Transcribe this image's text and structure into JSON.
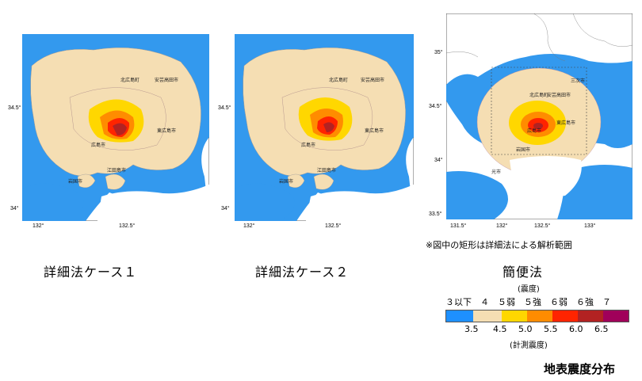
{
  "maps": [
    {
      "caption": "詳細法ケース１",
      "ticks": {
        "y_top": "34.5°",
        "y_bottom": "34°",
        "x_left": "132°",
        "x_mid": "132.5°"
      },
      "cities": [
        "北広島町",
        "安芸高田市",
        "東広島市",
        "広島市",
        "江田島市",
        "岩国市",
        "光市",
        "呉市"
      ]
    },
    {
      "caption": "詳細法ケース２",
      "ticks": {
        "y_top": "34.5°",
        "y_bottom": "34°",
        "x_left": "132°",
        "x_mid": "132.5°"
      },
      "cities": [
        "北広島町",
        "安芸高田市",
        "東広島市",
        "広島市",
        "江田島市",
        "岩国市",
        "光市",
        "呉市"
      ]
    },
    {
      "caption": "簡便法",
      "ticks": {
        "y_top": "35°",
        "y_mid": "34.5°",
        "y_low": "34°",
        "y_bottom": "33.5°",
        "x1": "131.5°",
        "x2": "132°",
        "x3": "132.5°",
        "x4": "133°"
      },
      "cities": [
        "三次市",
        "北広島町",
        "安芸高田市",
        "東広島市",
        "広島市",
        "岩国市",
        "光市"
      ]
    }
  ],
  "note": "※図中の矩形は詳細法による解析範囲",
  "legend": {
    "title": "(震度)",
    "class_labels": "３以下　４　５弱　５強　６弱　６強　７",
    "thresholds": [
      "3.5",
      "4.5",
      "5.0",
      "5.5",
      "6.0",
      "6.5"
    ],
    "unit": "(計測震度)",
    "colors": [
      "#1e90ff",
      "#f5deb3",
      "#ffd700",
      "#ff8c00",
      "#ff2400",
      "#b22222",
      "#a0005a"
    ]
  },
  "main_title": "地表震度分布"
}
